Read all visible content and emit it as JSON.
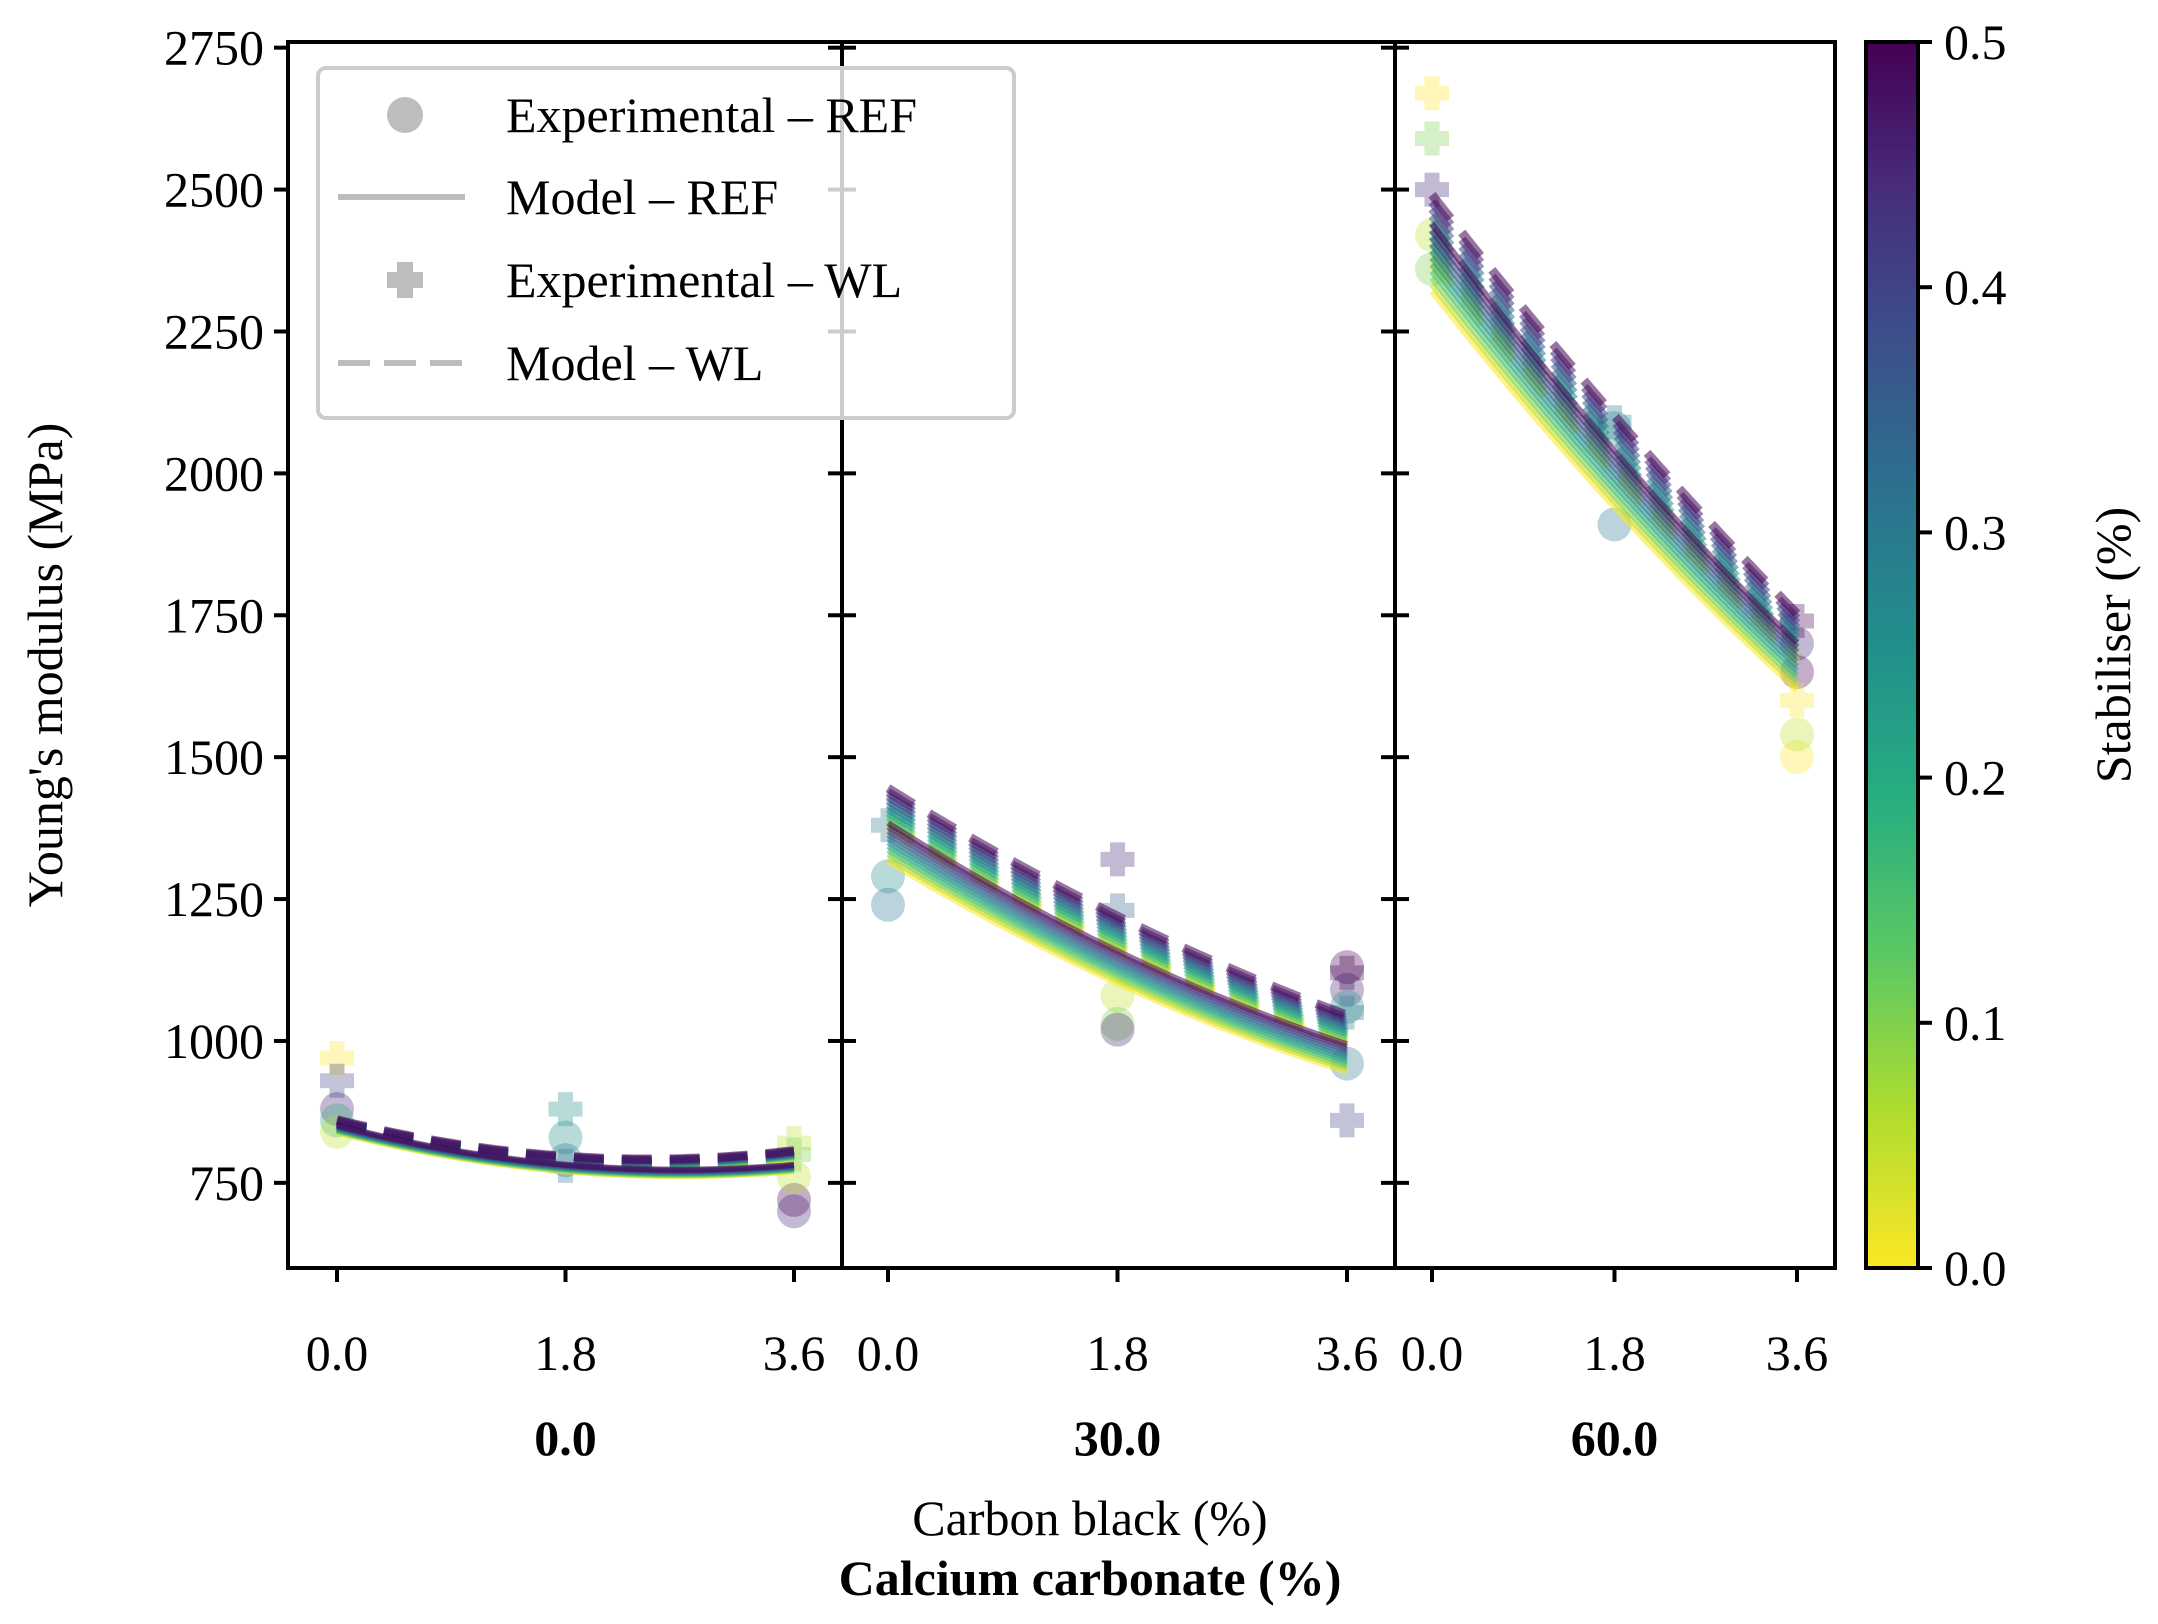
{
  "chart_data": {
    "type": "scatter",
    "ylabel": "Young's modulus (MPa)",
    "xlabel": "Carbon black (%)",
    "group_label": "Calcium carbonate (%)",
    "ylim": [
      600,
      2760
    ],
    "y_ticks": [
      750,
      1000,
      1250,
      1500,
      1750,
      2000,
      2250,
      2500,
      2750
    ],
    "x_ticks": [
      0.0,
      1.8,
      3.6
    ],
    "x_tick_labels": [
      "0.0",
      "1.8",
      "3.6"
    ],
    "y_tick_labels": [
      "750",
      "1000",
      "1250",
      "1500",
      "1750",
      "2000",
      "2250",
      "2500",
      "2750"
    ],
    "panels": [
      {
        "calcium_carbonate": "0.0",
        "model_ref": {
          "y_at_0": 860,
          "y_at_1_8": 790,
          "y_at_3_6": 790
        },
        "model_wl": {
          "y_at_0": 870,
          "y_at_1_8": 805,
          "y_at_3_6": 815
        },
        "experimental_ref": [
          {
            "x": 0.0,
            "y": 880,
            "stab": 0.45
          },
          {
            "x": 0.0,
            "y": 860,
            "stab": 0.2
          },
          {
            "x": 0.0,
            "y": 840,
            "stab": 0.05
          },
          {
            "x": 1.8,
            "y": 830,
            "stab": 0.25
          },
          {
            "x": 1.8,
            "y": 790,
            "stab": 0.3
          },
          {
            "x": 3.6,
            "y": 720,
            "stab": 0.5
          },
          {
            "x": 3.6,
            "y": 700,
            "stab": 0.45
          },
          {
            "x": 3.6,
            "y": 760,
            "stab": 0.05
          }
        ],
        "experimental_wl": [
          {
            "x": 0.0,
            "y": 970,
            "stab": 0.0
          },
          {
            "x": 0.0,
            "y": 930,
            "stab": 0.4
          },
          {
            "x": 1.8,
            "y": 880,
            "stab": 0.25
          },
          {
            "x": 1.8,
            "y": 780,
            "stab": 0.3
          },
          {
            "x": 3.6,
            "y": 820,
            "stab": 0.05
          },
          {
            "x": 3.6,
            "y": 800,
            "stab": 0.1
          }
        ]
      },
      {
        "calcium_carbonate": "30.0",
        "model_ref": {
          "y_at_0": 1350,
          "y_at_1_8": 1130,
          "y_at_3_6": 970
        },
        "model_wl": {
          "y_at_0": 1410,
          "y_at_1_8": 1190,
          "y_at_3_6": 1020
        },
        "experimental_ref": [
          {
            "x": 0.0,
            "y": 1290,
            "stab": 0.25
          },
          {
            "x": 0.0,
            "y": 1240,
            "stab": 0.3
          },
          {
            "x": 1.8,
            "y": 1080,
            "stab": 0.05
          },
          {
            "x": 1.8,
            "y": 1030,
            "stab": 0.1
          },
          {
            "x": 1.8,
            "y": 1020,
            "stab": 0.45
          },
          {
            "x": 3.6,
            "y": 1130,
            "stab": 0.5
          },
          {
            "x": 3.6,
            "y": 1090,
            "stab": 0.45
          },
          {
            "x": 3.6,
            "y": 1060,
            "stab": 0.25
          },
          {
            "x": 3.6,
            "y": 960,
            "stab": 0.3
          }
        ],
        "experimental_wl": [
          {
            "x": 0.0,
            "y": 1380,
            "stab": 0.3
          },
          {
            "x": 1.8,
            "y": 1320,
            "stab": 0.45
          },
          {
            "x": 1.8,
            "y": 1230,
            "stab": 0.35
          },
          {
            "x": 3.6,
            "y": 1120,
            "stab": 0.5
          },
          {
            "x": 3.6,
            "y": 1050,
            "stab": 0.3
          },
          {
            "x": 3.6,
            "y": 860,
            "stab": 0.4
          }
        ]
      },
      {
        "calcium_carbonate": "60.0",
        "model_ref": {
          "y_at_0": 2380,
          "y_at_1_8": 1990,
          "y_at_3_6": 1660
        },
        "model_wl": {
          "y_at_0": 2430,
          "y_at_1_8": 2050,
          "y_at_3_6": 1710
        },
        "experimental_ref": [
          {
            "x": 0.0,
            "y": 2420,
            "stab": 0.05
          },
          {
            "x": 0.0,
            "y": 2360,
            "stab": 0.1
          },
          {
            "x": 1.8,
            "y": 2080,
            "stab": 0.25
          },
          {
            "x": 1.8,
            "y": 1910,
            "stab": 0.3
          },
          {
            "x": 3.6,
            "y": 1700,
            "stab": 0.45
          },
          {
            "x": 3.6,
            "y": 1650,
            "stab": 0.5
          },
          {
            "x": 3.6,
            "y": 1500,
            "stab": 0.0
          },
          {
            "x": 3.6,
            "y": 1540,
            "stab": 0.05
          }
        ],
        "experimental_wl": [
          {
            "x": 0.0,
            "y": 2670,
            "stab": 0.0
          },
          {
            "x": 0.0,
            "y": 2590,
            "stab": 0.1
          },
          {
            "x": 0.0,
            "y": 2500,
            "stab": 0.45
          },
          {
            "x": 1.8,
            "y": 2090,
            "stab": 0.3
          },
          {
            "x": 3.6,
            "y": 1740,
            "stab": 0.5
          },
          {
            "x": 3.6,
            "y": 1600,
            "stab": 0.0
          }
        ]
      }
    ],
    "legend": {
      "placement": "top-left",
      "entries": [
        {
          "label": "Experimental – REF",
          "marker": "circle"
        },
        {
          "label": "Model – REF",
          "marker": "solid-line"
        },
        {
          "label": "Experimental – WL",
          "marker": "plus"
        },
        {
          "label": "Model – WL",
          "marker": "dashed-line"
        }
      ]
    },
    "colorbar": {
      "label": "Stabiliser (%)",
      "colormap": "viridis",
      "range": [
        0.0,
        0.5
      ],
      "ticks": [
        0.0,
        0.1,
        0.2,
        0.3,
        0.4,
        0.5
      ],
      "tick_labels": [
        "0.0",
        "0.1",
        "0.2",
        "0.3",
        "0.4",
        "0.5"
      ]
    }
  }
}
